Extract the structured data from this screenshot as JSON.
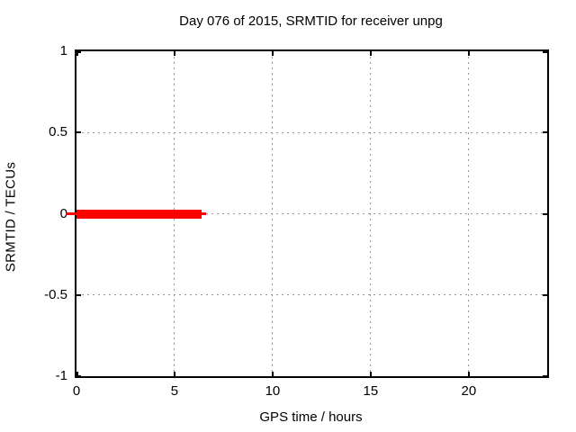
{
  "chart_data": {
    "type": "line",
    "title": "Day 076 of 2015, SRMTID for receiver unpg",
    "xlabel": "GPS time / hours",
    "ylabel": "SRMTID / TECUs",
    "xlim": [
      0,
      24
    ],
    "ylim": [
      -1,
      1
    ],
    "xticks": [
      0,
      5,
      10,
      15,
      20
    ],
    "yticks": [
      1,
      0.5,
      0,
      -0.5,
      -1
    ],
    "grid": true,
    "legend": "none",
    "series": [
      {
        "name": "SRMTID",
        "color": "#ff0000",
        "style": "thick-line",
        "y_value": 0,
        "points": [
          [
            0,
            0
          ],
          [
            6.4,
            0
          ]
        ]
      }
    ],
    "colors": {
      "line": "#ff0000",
      "grid": "#999999",
      "border": "#000000",
      "text": "#000000",
      "background": "#ffffff"
    }
  }
}
